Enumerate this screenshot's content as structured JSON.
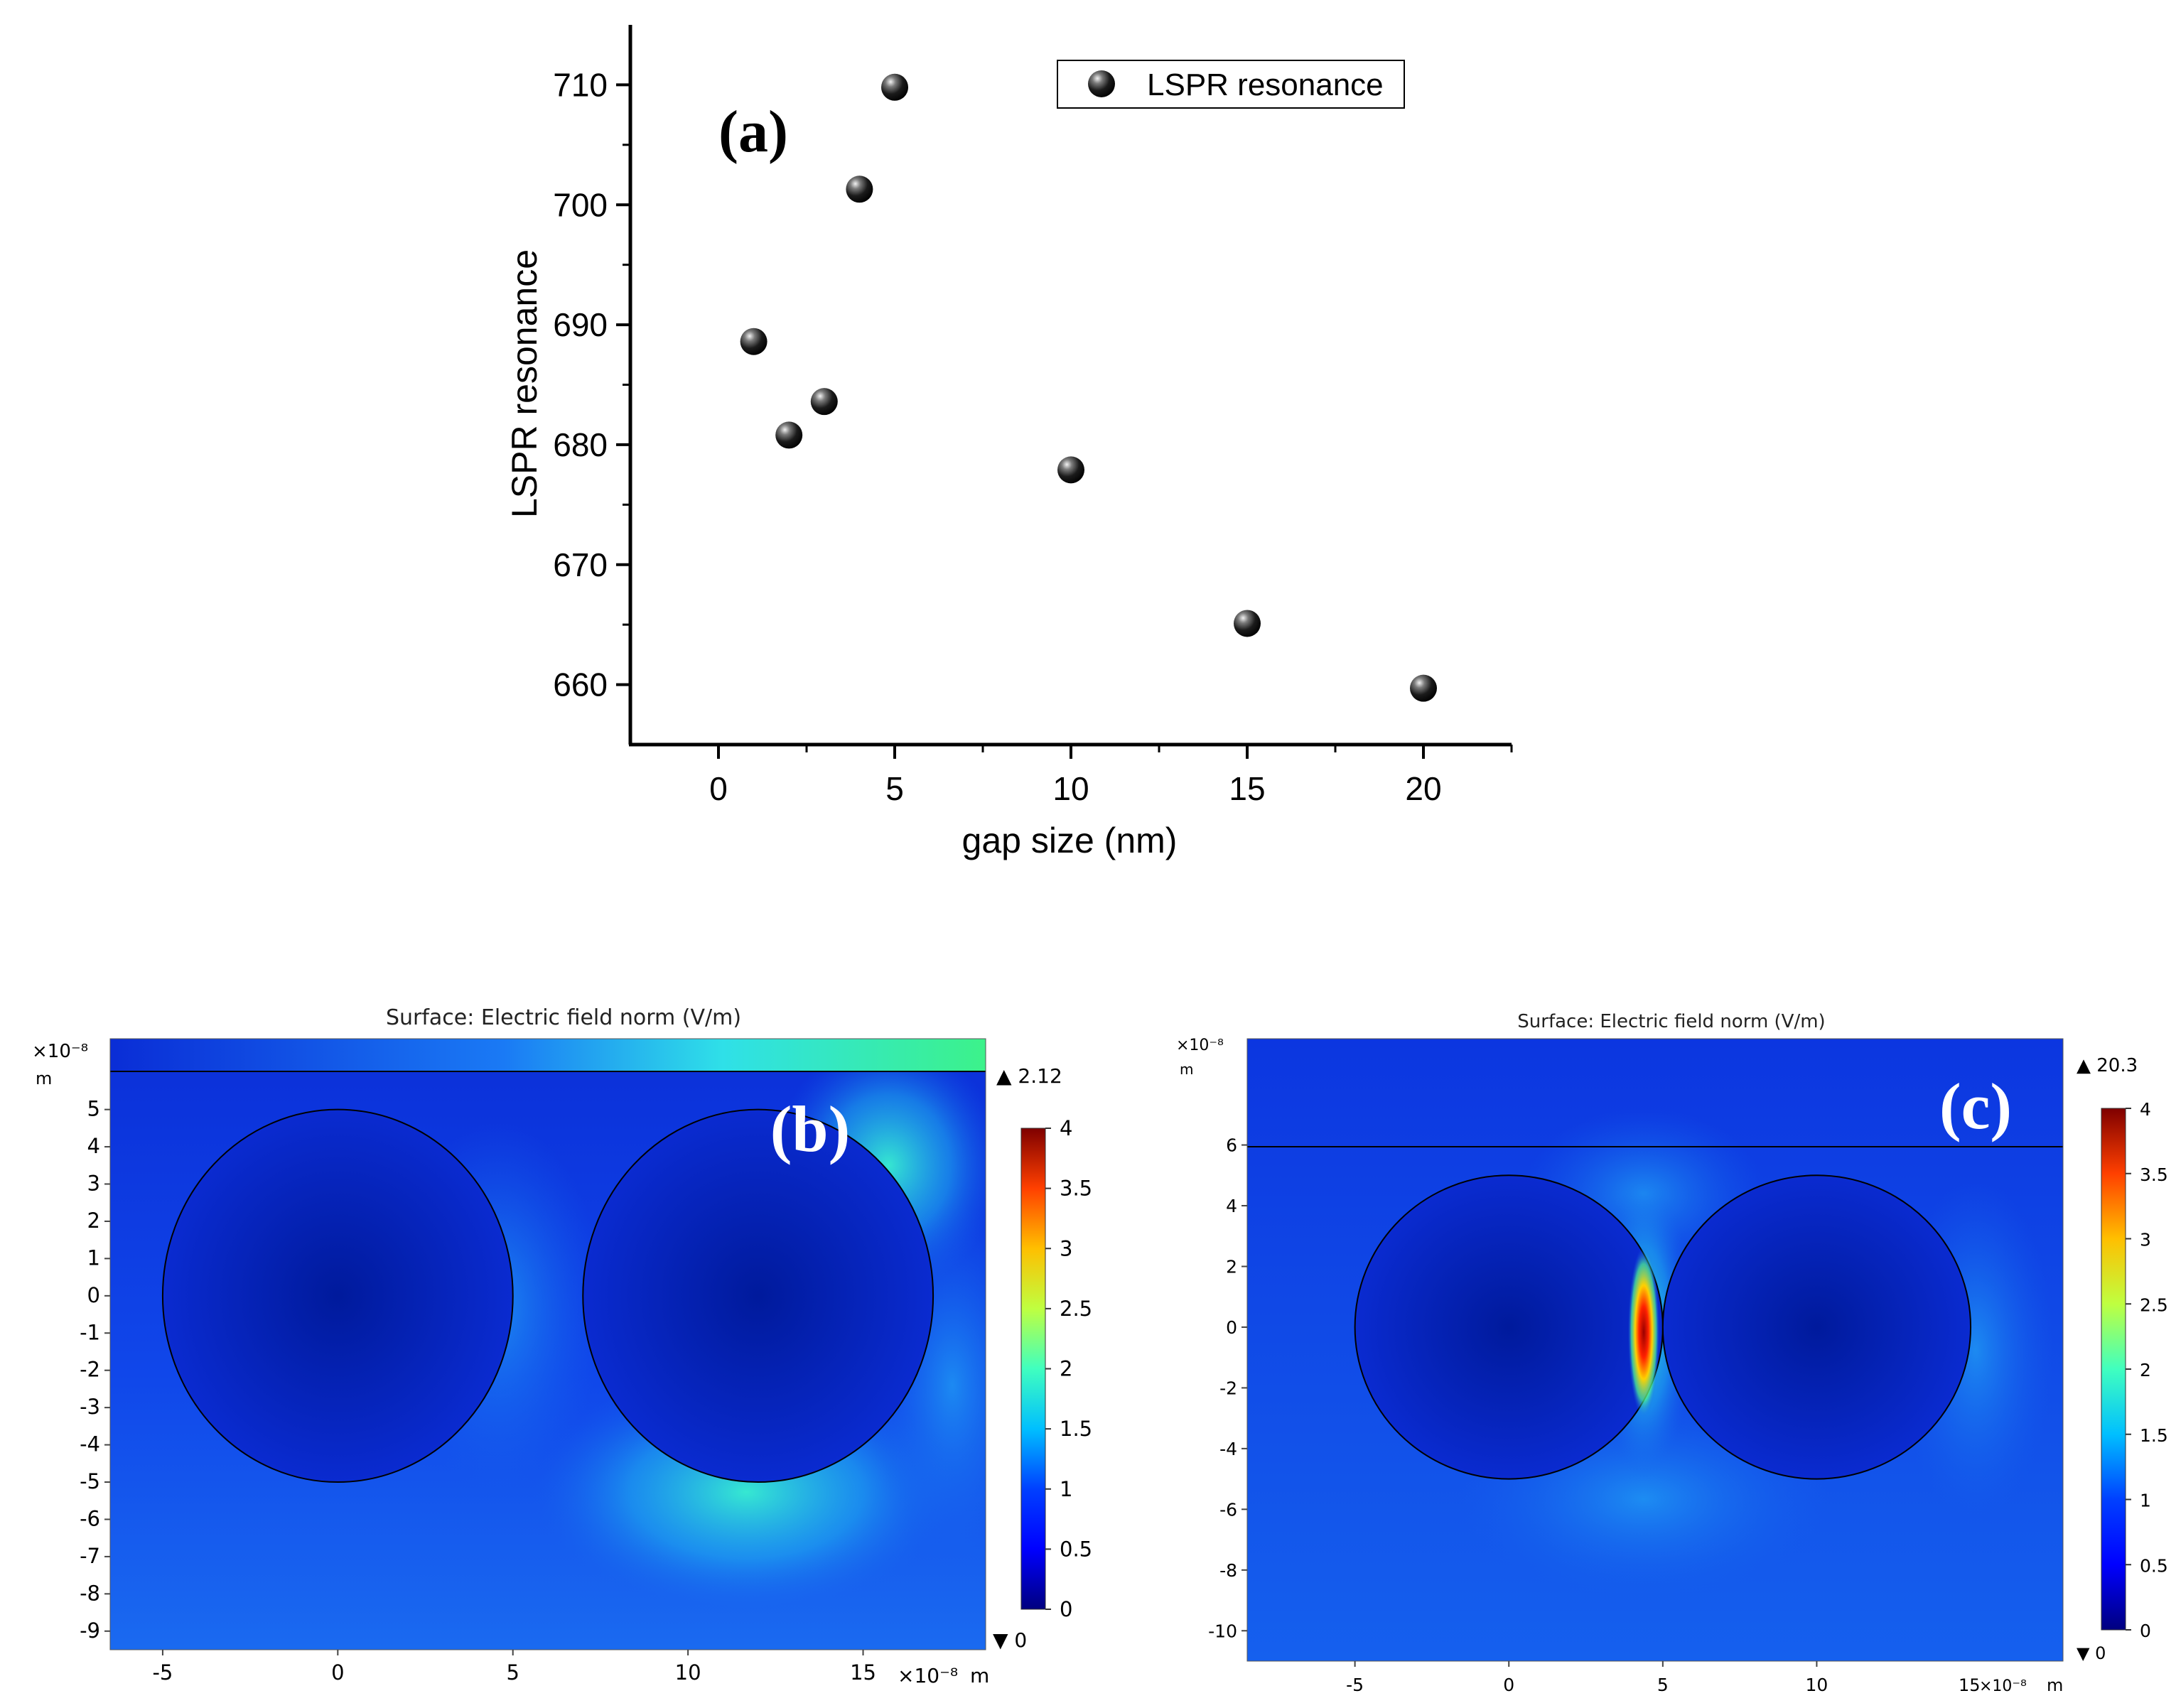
{
  "colors": {
    "axis": "#000000",
    "background": "#ffffff",
    "colormap": [
      "#00007f",
      "#0000ff",
      "#007fff",
      "#00ffff",
      "#7fff7f",
      "#ffff00",
      "#ff7f00",
      "#ff0000",
      "#7f0000"
    ]
  },
  "chart_data": [
    {
      "id": "a",
      "type": "scatter",
      "panel_label": "(a)",
      "xlabel": "gap size (nm)",
      "ylabel": "LSPR resonance",
      "xlim": [
        -2.5,
        22.5
      ],
      "ylim": [
        655,
        715
      ],
      "xticks": [
        "0",
        "5",
        "10",
        "15",
        "20"
      ],
      "yticks": [
        "660",
        "670",
        "680",
        "690",
        "700",
        "710"
      ],
      "legend": {
        "label": "LSPR resonance",
        "position": "top-right"
      },
      "series": [
        {
          "name": "LSPR resonance",
          "x": [
            1,
            2,
            3,
            4,
            5,
            10,
            15,
            20
          ],
          "y": [
            688.6,
            680.8,
            683.6,
            701.3,
            709.8,
            677.9,
            665.1,
            659.7
          ]
        }
      ]
    },
    {
      "id": "b",
      "type": "heatmap",
      "panel_label": "(b)",
      "title": "Surface: Electric field norm (V/m)",
      "axis_multiplier": "×10⁻⁸",
      "x_unit": "m",
      "y_unit": "m",
      "xlim": [
        -6.5,
        18.5
      ],
      "ylim": [
        -9.5,
        6.9
      ],
      "xticks": [
        "-5",
        "0",
        "5",
        "10",
        "15"
      ],
      "yticks": [
        "5",
        "4",
        "3",
        "2",
        "1",
        "0",
        "-1",
        "-2",
        "-3",
        "-4",
        "-5",
        "-6",
        "-7",
        "-8",
        "-9"
      ],
      "colorbar": {
        "ticks": [
          "4",
          "3.5",
          "3",
          "2.5",
          "2",
          "1.5",
          "1",
          "0.5",
          "0"
        ],
        "max_marker": "▲ 2.12",
        "min_marker": "▼ 0",
        "range": [
          0,
          4
        ]
      },
      "particles": [
        {
          "cx": 0,
          "cy": 0,
          "r": 5
        },
        {
          "cx": 12,
          "cy": 0,
          "r": 5
        }
      ],
      "substrate_y": 6.0
    },
    {
      "id": "c",
      "type": "heatmap",
      "panel_label": "(c)",
      "title": "Surface: Electric field norm (V/m)",
      "axis_multiplier": "×10⁻⁸",
      "x_unit": "m",
      "y_unit": "m",
      "xlim": [
        -8.5,
        18.0
      ],
      "ylim": [
        -11.0,
        9.5
      ],
      "xticks": [
        "-5",
        "0",
        "5",
        "10"
      ],
      "x_last_tick": "15",
      "yticks": [
        "6",
        "4",
        "2",
        "0",
        "-2",
        "-4",
        "-6",
        "-8",
        "-10"
      ],
      "colorbar": {
        "ticks": [
          "4",
          "3.5",
          "3",
          "2.5",
          "2",
          "1.5",
          "1",
          "0.5",
          "0"
        ],
        "max_marker": "▲ 20.3",
        "min_marker": "▼ 0",
        "range": [
          0,
          4
        ]
      },
      "particles": [
        {
          "cx": 0,
          "cy": 0,
          "r": 5
        },
        {
          "cx": 10,
          "cy": 0,
          "r": 5
        }
      ],
      "substrate_y": 6.0
    }
  ]
}
